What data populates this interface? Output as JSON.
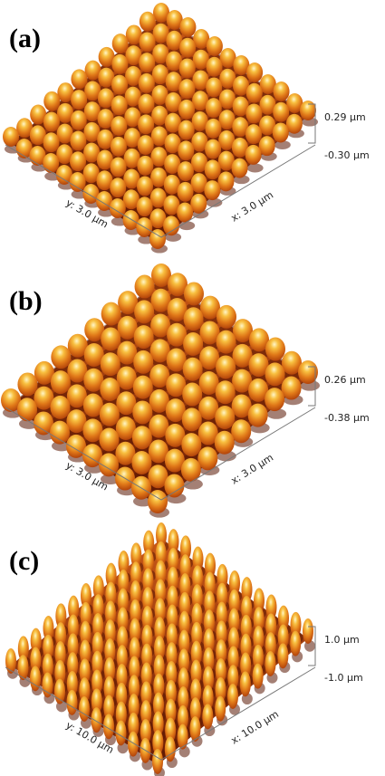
{
  "panels": [
    {
      "label": "(a)",
      "z_max": "0.29 µm",
      "z_min": "-0.30 µm",
      "y_axis": "y: 3.0 µm",
      "x_axis": "x: 3.0 µm"
    },
    {
      "label": "(b)",
      "z_max": "0.26 µm",
      "z_min": "-0.38 µm",
      "y_axis": "y: 3.0 µm",
      "x_axis": "x: 3.0 µm"
    },
    {
      "label": "(c)",
      "z_max": "1.0 µm",
      "z_min": "-1.0 µm",
      "y_axis": "y: 10.0 µm",
      "x_axis": "x: 10.0 µm"
    }
  ]
}
